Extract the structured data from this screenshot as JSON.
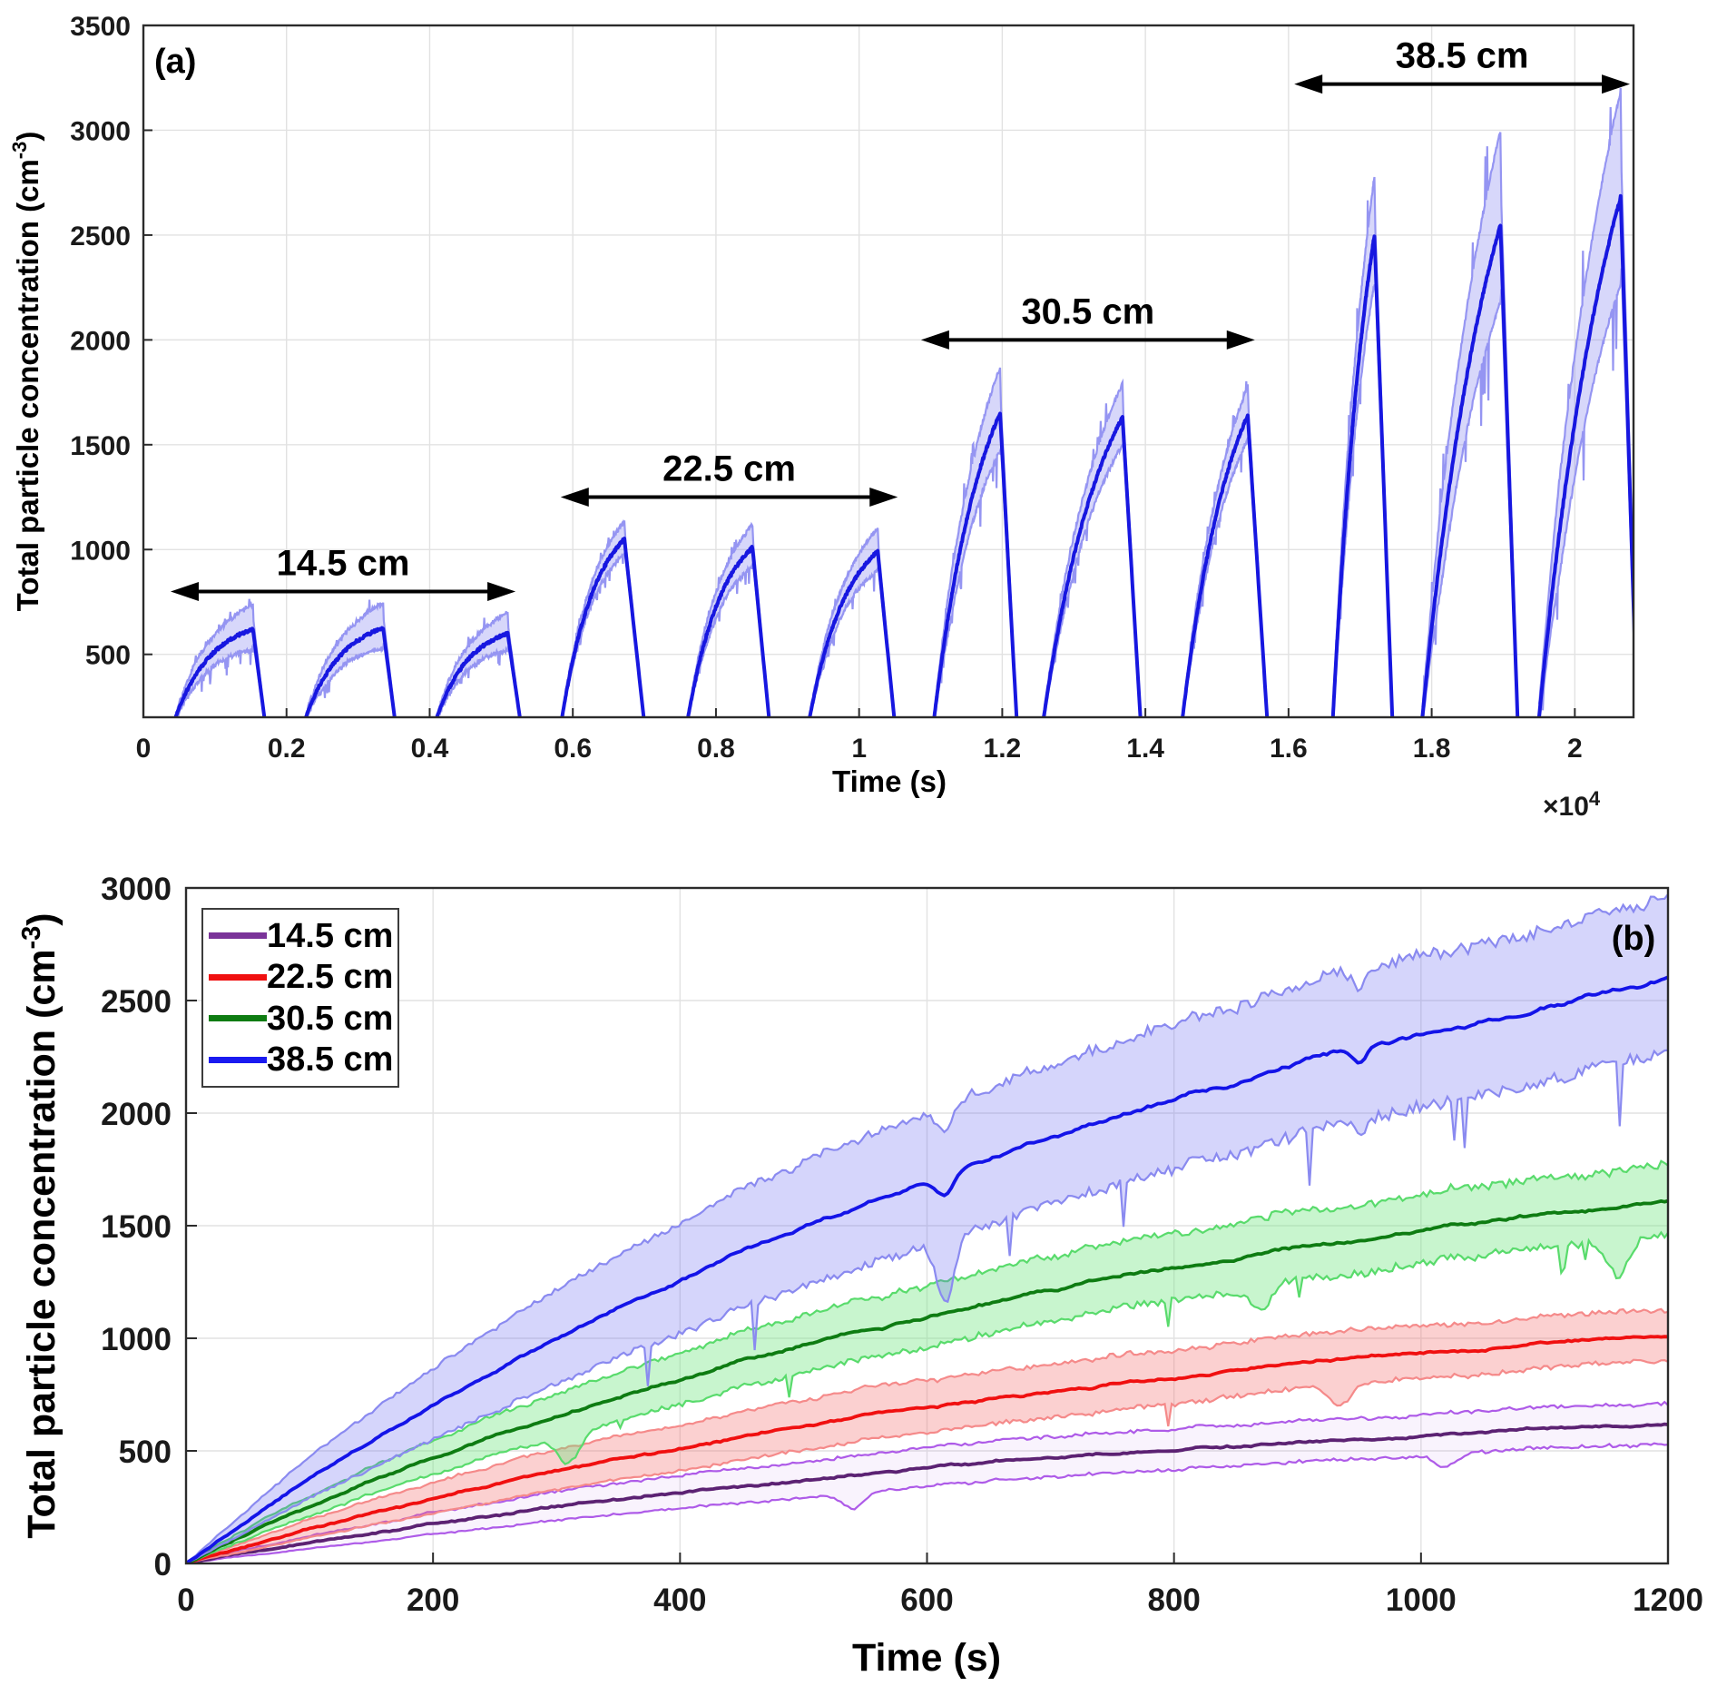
{
  "panel_a": {
    "tag": "(a)",
    "xlabel": "Time (s)",
    "x_exponent": {
      "text": "×10",
      "sup": "4"
    },
    "ylabel": {
      "text": "Total particle concentration (cm",
      "sup": "-3",
      "end": ")"
    }
  },
  "panel_b": {
    "tag": "(b)",
    "xlabel": "Time (s)",
    "ylabel": {
      "text": "Total particle concentration (cm",
      "sup": "-3",
      "end": ")"
    },
    "legend": {
      "items": [
        {
          "label": "14.5 cm",
          "color": "#7A3399"
        },
        {
          "label": "22.5 cm",
          "color": "#F01010"
        },
        {
          "label": "30.5 cm",
          "color": "#0E7C12"
        },
        {
          "label": "38.5 cm",
          "color": "#1A1AF0"
        }
      ]
    }
  },
  "chart_data": [
    {
      "type": "line",
      "panel": "a",
      "title": "",
      "xlabel": "Time (s)",
      "x_scale_factor": "×10^4",
      "ylabel": "Total particle concentration (cm^-3)",
      "xlim": [
        0,
        20820
      ],
      "ylim": [
        200,
        3500
      ],
      "grid": true,
      "xtick_values": [
        0,
        2000,
        4000,
        6000,
        8000,
        10000,
        12000,
        14000,
        16000,
        18000,
        20000
      ],
      "xtick_labels": [
        "0",
        "0.2",
        "0.4",
        "0.6",
        "0.8",
        "1",
        "1.2",
        "1.4",
        "1.6",
        "1.8",
        "2"
      ],
      "ytick_values": [
        500,
        1000,
        1500,
        2000,
        2500,
        3000,
        3500
      ],
      "ytick_labels": [
        "500",
        "1000",
        "1500",
        "2000",
        "2500",
        "3000",
        "3500"
      ],
      "line_color": "#1717E0",
      "band_edge_color": "#9595F2",
      "band_fill_color": "rgba(110,110,238,0.28)",
      "rise_shape_k": [
        2.1,
        1.8,
        1.3,
        1.05
      ],
      "groups": [
        {
          "label": "14.5 cm",
          "arrow": {
            "x1": 380,
            "x2": 5200,
            "y": 800
          },
          "cycles": [
            {
              "t_start": 450,
              "t_peak": 1530,
              "t_end": 1690,
              "peak": 620,
              "band_top": 740
            },
            {
              "t_start": 2270,
              "t_peak": 3350,
              "t_end": 3510,
              "peak": 625,
              "band_top": 745
            },
            {
              "t_start": 4100,
              "t_peak": 5090,
              "t_end": 5260,
              "peak": 600,
              "band_top": 700
            }
          ]
        },
        {
          "label": "22.5 cm",
          "arrow": {
            "x1": 5830,
            "x2": 10540,
            "y": 1250
          },
          "cycles": [
            {
              "t_start": 5850,
              "t_peak": 6720,
              "t_end": 6990,
              "peak": 1050,
              "band_top": 1135
            },
            {
              "t_start": 7610,
              "t_peak": 8510,
              "t_end": 8740,
              "peak": 1010,
              "band_top": 1120
            },
            {
              "t_start": 9310,
              "t_peak": 10260,
              "t_end": 10490,
              "peak": 990,
              "band_top": 1100
            }
          ]
        },
        {
          "label": "30.5 cm",
          "arrow": {
            "x1": 10865,
            "x2": 15530,
            "y": 2000
          },
          "cycles": [
            {
              "t_start": 11050,
              "t_peak": 11970,
              "t_end": 12200,
              "peak": 1650,
              "band_top": 1870
            },
            {
              "t_start": 12580,
              "t_peak": 13680,
              "t_end": 13930,
              "peak": 1630,
              "band_top": 1790
            },
            {
              "t_start": 14520,
              "t_peak": 15430,
              "t_end": 15700,
              "peak": 1640,
              "band_top": 1780
            }
          ]
        },
        {
          "label": "38.5 cm",
          "arrow": {
            "x1": 16080,
            "x2": 20770,
            "y": 3220
          },
          "cycles": [
            {
              "t_start": 16620,
              "t_peak": 17200,
              "t_end": 17450,
              "peak": 2500,
              "band_top": 2780
            },
            {
              "t_start": 17870,
              "t_peak": 18960,
              "t_end": 19200,
              "peak": 2550,
              "band_top": 3000
            },
            {
              "t_start": 19500,
              "t_peak": 20640,
              "t_end": 20870,
              "peak": 2680,
              "band_top": 3190
            }
          ]
        }
      ]
    },
    {
      "type": "line",
      "panel": "b",
      "title": "",
      "xlabel": "Time (s)",
      "ylabel": "Total particle concentration (cm^-3)",
      "xlim": [
        0,
        1200
      ],
      "ylim": [
        0,
        3000
      ],
      "grid": true,
      "xtick_values": [
        0,
        200,
        400,
        600,
        800,
        1000,
        1200
      ],
      "xtick_labels": [
        "0",
        "200",
        "400",
        "600",
        "800",
        "1000",
        "1200"
      ],
      "ytick_values": [
        0,
        500,
        1000,
        1500,
        2000,
        2500,
        3000
      ],
      "ytick_labels": [
        "0",
        "500",
        "1000",
        "1500",
        "2000",
        "2500",
        "3000"
      ],
      "legend_position": "top-left",
      "series": [
        {
          "name": "14.5 cm",
          "color": "#5C2273",
          "band_edge_color": "#AE5BE8",
          "band_fill_color": "rgba(174,91,232,0.07)",
          "amplitude": 780,
          "tau": 780,
          "band_c1": 0.097,
          "band_c2": 0.24,
          "sampled_t": [
            0,
            200,
            400,
            600,
            800,
            1000,
            1200
          ],
          "sampled_mean": [
            0,
            176,
            313,
            419,
            500,
            563,
            612
          ],
          "dips": [
            {
              "t": 540,
              "lower": 70
            },
            {
              "t": 1020,
              "lower": 60
            }
          ]
        },
        {
          "name": "22.5 cm",
          "color": "#F01010",
          "band_edge_color": "#F58A8A",
          "band_fill_color": "rgba(244,110,110,0.32)",
          "amplitude": 1290,
          "tau": 780,
          "band_c1": 0.061,
          "band_c2": 0.24,
          "sampled_t": [
            0,
            200,
            400,
            600,
            800,
            1000,
            1200
          ],
          "sampled_mean": [
            0,
            292,
            518,
            692,
            827,
            932,
            1013
          ],
          "dips": [
            {
              "t": 935,
              "lower": 90
            }
          ]
        },
        {
          "name": "30.5 cm",
          "color": "#0E7C12",
          "band_edge_color": "#59DB6C",
          "band_fill_color": "rgba(110,230,125,0.38)",
          "amplitude": 2050,
          "tau": 780,
          "band_c1": 0.073,
          "band_c2": 0.12,
          "sampled_t": [
            0,
            200,
            400,
            600,
            800,
            1000,
            1200
          ],
          "sampled_mean": [
            0,
            464,
            823,
            1100,
            1315,
            1481,
            1609
          ],
          "dips": [
            {
              "t": 310,
              "lower": 130
            },
            {
              "t": 870,
              "lower": 110
            },
            {
              "t": 1160,
              "lower": 150
            }
          ]
        },
        {
          "name": "38.5 cm",
          "color": "#1414E8",
          "band_edge_color": "#8A8AF0",
          "band_fill_color": "rgba(100,100,240,0.27)",
          "amplitude": 3500,
          "tau": 900,
          "band_c1": 0.0985,
          "band_c2": 0.173,
          "sampled_t": [
            0,
            200,
            400,
            600,
            800,
            1000,
            1200
          ],
          "sampled_mean": [
            0,
            698,
            1257,
            1703,
            2061,
            2348,
            2577
          ],
          "dips": [
            {
              "t": 615,
              "mean": 85,
              "lower": 200,
              "width": 10
            },
            {
              "t": 950,
              "mean": 65,
              "width": 8
            }
          ]
        }
      ]
    }
  ]
}
